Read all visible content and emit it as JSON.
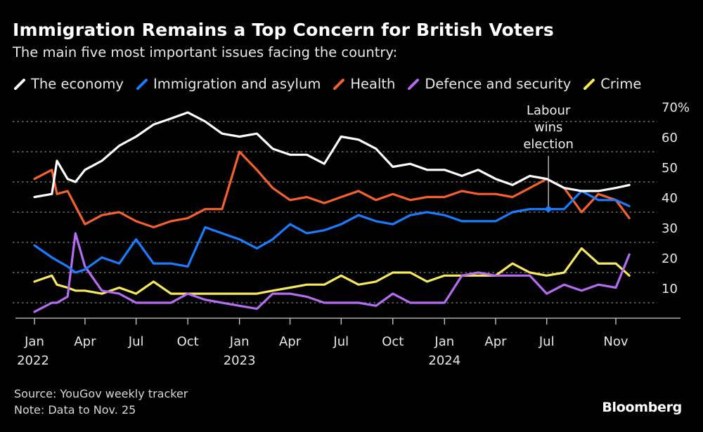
{
  "title": "Immigration Remains a Top Concern for British Voters",
  "subtitle": "The main five most important issues facing the country:",
  "source": "Source: YouGov weekly tracker",
  "note": "Note: Data to Nov. 25",
  "logo": "Bloomberg",
  "chart_data": {
    "type": "line",
    "title": "Immigration Remains a Top Concern for British Voters",
    "subtitle": "The main five most important issues facing the country:",
    "ylabel": "",
    "xlabel": "",
    "ylim": [
      5,
      72
    ],
    "y_unit": "%",
    "yticks": [
      10,
      20,
      30,
      40,
      50,
      60,
      70
    ],
    "ytick_labels": [
      "10",
      "20",
      "30",
      "40",
      "50",
      "60",
      "70%"
    ],
    "grid": true,
    "legend": "top",
    "xticks": [
      {
        "date": "2022-01-01",
        "label": "Jan",
        "year": "2022"
      },
      {
        "date": "2022-04-01",
        "label": "Apr",
        "year": ""
      },
      {
        "date": "2022-07-01",
        "label": "Jul",
        "year": ""
      },
      {
        "date": "2022-10-01",
        "label": "Oct",
        "year": ""
      },
      {
        "date": "2023-01-01",
        "label": "Jan",
        "year": "2023"
      },
      {
        "date": "2023-04-01",
        "label": "Apr",
        "year": ""
      },
      {
        "date": "2023-07-01",
        "label": "Jul",
        "year": ""
      },
      {
        "date": "2023-10-01",
        "label": "Oct",
        "year": ""
      },
      {
        "date": "2024-01-01",
        "label": "Jan",
        "year": "2024"
      },
      {
        "date": "2024-04-01",
        "label": "Apr",
        "year": ""
      },
      {
        "date": "2024-07-01",
        "label": "Jul",
        "year": ""
      },
      {
        "date": "2024-11-01",
        "label": "Nov",
        "year": ""
      }
    ],
    "x": [
      "2022-01-01",
      "2022-02-01",
      "2022-02-10",
      "2022-03-01",
      "2022-03-15",
      "2022-04-01",
      "2022-05-01",
      "2022-06-01",
      "2022-07-01",
      "2022-08-01",
      "2022-09-01",
      "2022-10-01",
      "2022-11-01",
      "2022-12-01",
      "2023-01-01",
      "2023-02-01",
      "2023-03-01",
      "2023-04-01",
      "2023-05-01",
      "2023-06-01",
      "2023-07-01",
      "2023-08-01",
      "2023-09-01",
      "2023-10-01",
      "2023-11-01",
      "2023-12-01",
      "2024-01-01",
      "2024-02-01",
      "2024-03-01",
      "2024-04-01",
      "2024-05-01",
      "2024-06-01",
      "2024-07-01",
      "2024-08-01",
      "2024-09-01",
      "2024-10-01",
      "2024-11-01",
      "2024-11-25"
    ],
    "series": [
      {
        "name": "The economy",
        "color": "#ffffff",
        "values": [
          45,
          46,
          57,
          51,
          50,
          54,
          57,
          62,
          65,
          69,
          71,
          73,
          70,
          66,
          65,
          66,
          61,
          59,
          59,
          56,
          65,
          64,
          61,
          55,
          56,
          54,
          54,
          52,
          54,
          51,
          49,
          52,
          51,
          48,
          47,
          47,
          48,
          49
        ]
      },
      {
        "name": "Immigration and asylum",
        "color": "#1a7cff",
        "values": [
          29,
          25,
          24,
          22,
          20,
          21,
          25,
          23,
          31,
          23,
          23,
          22,
          35,
          33,
          31,
          28,
          31,
          36,
          33,
          34,
          36,
          39,
          37,
          36,
          39,
          40,
          39,
          37,
          37,
          37,
          40,
          41,
          41,
          41,
          47,
          44,
          44,
          42
        ]
      },
      {
        "name": "Health",
        "color": "#f5602b",
        "values": [
          51,
          54,
          46,
          47,
          42,
          36,
          39,
          40,
          37,
          35,
          37,
          38,
          41,
          41,
          60,
          54,
          48,
          44,
          45,
          43,
          45,
          47,
          44,
          46,
          44,
          45,
          45,
          47,
          46,
          46,
          45,
          48,
          51,
          48,
          40,
          46,
          44,
          38
        ]
      },
      {
        "name": "Defence and security",
        "color": "#b56cf2",
        "values": [
          7,
          10,
          10,
          12,
          33,
          22,
          14,
          13,
          10,
          10,
          10,
          13,
          11,
          10,
          9,
          8,
          13,
          13,
          12,
          10,
          10,
          10,
          9,
          13,
          10,
          10,
          10,
          19,
          20,
          19,
          19,
          19,
          13,
          16,
          14,
          16,
          15,
          26
        ]
      },
      {
        "name": "Crime",
        "color": "#f7e95c",
        "values": [
          17,
          19,
          16,
          15,
          14,
          14,
          13,
          15,
          13,
          17,
          13,
          13,
          13,
          13,
          13,
          13,
          14,
          15,
          16,
          16,
          19,
          16,
          17,
          20,
          20,
          17,
          19,
          19,
          19,
          19,
          23,
          20,
          19,
          20,
          28,
          23,
          23,
          19
        ]
      }
    ],
    "annotations": [
      {
        "date": "2024-07-04",
        "text_lines": [
          "Labour",
          "wins",
          "election"
        ],
        "value": 41
      }
    ]
  }
}
